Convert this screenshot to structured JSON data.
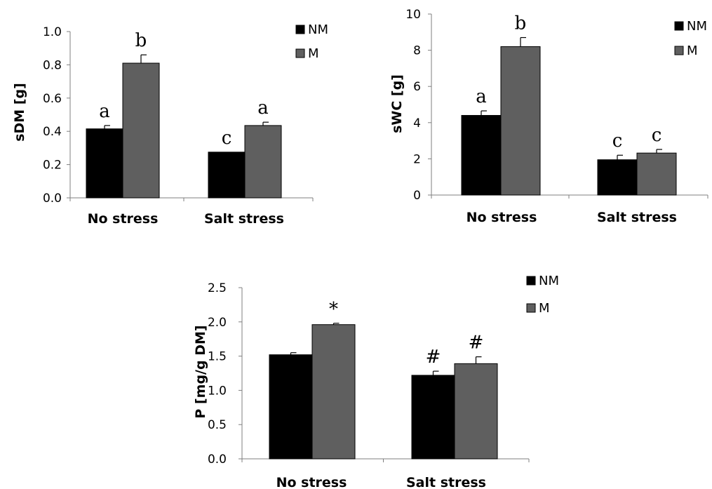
{
  "colors": {
    "NM": "#000000",
    "M": "#5f5f5f"
  },
  "chart_data": [
    {
      "type": "bar",
      "categories": [
        "No stress",
        "Salt stress"
      ],
      "ylabel": "sDM [g]",
      "ylim": [
        0,
        1.0
      ],
      "yticks": [
        "0.0",
        "0.2",
        "0.4",
        "0.6",
        "0.8",
        "1.0"
      ],
      "legend": [
        "NM",
        "M"
      ],
      "legend_position": "top-right",
      "series": [
        {
          "name": "NM",
          "values": [
            0.415,
            0.275
          ],
          "errors": [
            0.02,
            0.0
          ],
          "labels": [
            "a",
            "c"
          ]
        },
        {
          "name": "M",
          "values": [
            0.81,
            0.435
          ],
          "errors": [
            0.05,
            0.02
          ],
          "labels": [
            "b",
            "a"
          ]
        }
      ]
    },
    {
      "type": "bar",
      "categories": [
        "No stress",
        "Salt stress"
      ],
      "ylabel": "sWC [g]",
      "ylim": [
        0,
        10
      ],
      "yticks": [
        "0",
        "2",
        "4",
        "6",
        "8",
        "10"
      ],
      "legend": [
        "NM",
        "M"
      ],
      "legend_position": "top-right",
      "series": [
        {
          "name": "NM",
          "values": [
            4.4,
            1.95
          ],
          "errors": [
            0.25,
            0.25
          ],
          "labels": [
            "a",
            "c"
          ]
        },
        {
          "name": "M",
          "values": [
            8.2,
            2.32
          ],
          "errors": [
            0.5,
            0.2
          ],
          "labels": [
            "b",
            "c"
          ]
        }
      ]
    },
    {
      "type": "bar",
      "categories": [
        "No stress",
        "Salt stress"
      ],
      "ylabel": "P [mg/g DM]",
      "ylim": [
        0,
        2.5
      ],
      "yticks": [
        "0.0",
        "0.5",
        "1.0",
        "1.5",
        "2.0",
        "2.5"
      ],
      "legend": [
        "NM",
        "M"
      ],
      "legend_position": "top-right",
      "series": [
        {
          "name": "NM",
          "values": [
            1.52,
            1.22
          ],
          "errors": [
            0.03,
            0.06
          ],
          "labels": [
            "",
            "#"
          ]
        },
        {
          "name": "M",
          "values": [
            1.96,
            1.39
          ],
          "errors": [
            0.02,
            0.1
          ],
          "labels": [
            "*",
            "#"
          ]
        }
      ]
    }
  ]
}
